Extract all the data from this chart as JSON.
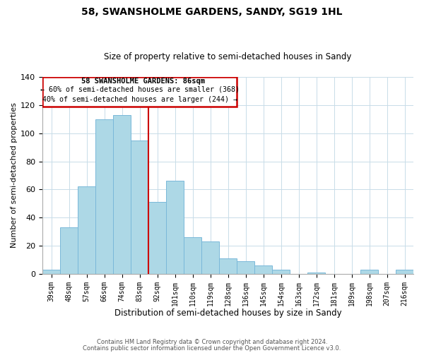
{
  "title": "58, SWANSHOLME GARDENS, SANDY, SG19 1HL",
  "subtitle": "Size of property relative to semi-detached houses in Sandy",
  "xlabel": "Distribution of semi-detached houses by size in Sandy",
  "ylabel": "Number of semi-detached properties",
  "categories": [
    "39sqm",
    "48sqm",
    "57sqm",
    "66sqm",
    "74sqm",
    "83sqm",
    "92sqm",
    "101sqm",
    "110sqm",
    "119sqm",
    "128sqm",
    "136sqm",
    "145sqm",
    "154sqm",
    "163sqm",
    "172sqm",
    "181sqm",
    "189sqm",
    "198sqm",
    "207sqm",
    "216sqm"
  ],
  "values": [
    3,
    33,
    62,
    110,
    113,
    95,
    51,
    66,
    26,
    23,
    11,
    9,
    6,
    3,
    0,
    1,
    0,
    0,
    3,
    0,
    3
  ],
  "bar_color": "#add8e6",
  "bar_edge_color": "#7ab8d9",
  "property_sqm": 86,
  "property_label": "58 SWANSHOLME GARDENS: 86sqm",
  "pct_smaller": 60,
  "count_smaller": 368,
  "pct_larger": 40,
  "count_larger": 244,
  "annotation_box_color": "#ffffff",
  "annotation_box_edge": "#cc0000",
  "property_line_color": "#cc0000",
  "ylim": [
    0,
    140
  ],
  "footer1": "Contains HM Land Registry data © Crown copyright and database right 2024.",
  "footer2": "Contains public sector information licensed under the Open Government Licence v3.0."
}
